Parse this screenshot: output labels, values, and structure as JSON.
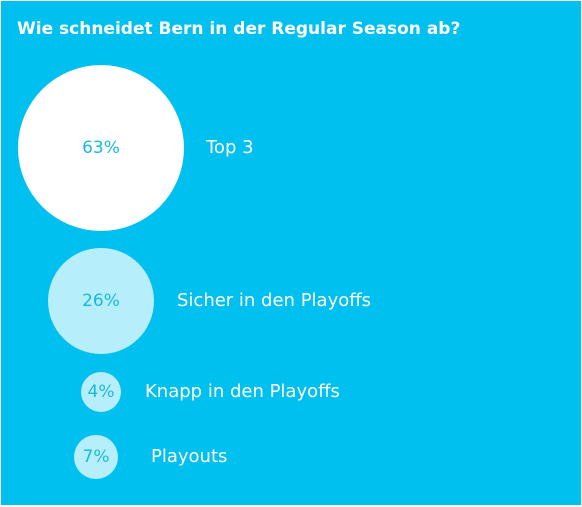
{
  "poll": {
    "title": "Wie schneidet Bern in der Regular Season ab?",
    "colors": {
      "background": "#00c0f0",
      "top_bubble": "#ffffff",
      "other_bubble": "#b7eefc",
      "percent_text": "#1ab8dc",
      "label_text": "#ffffff"
    },
    "options": [
      {
        "percent_label": "63%",
        "value": 63,
        "label": "Top 3"
      },
      {
        "percent_label": "26%",
        "value": 26,
        "label": "Sicher in den Playoffs"
      },
      {
        "percent_label": "4%",
        "value": 4,
        "label": "Knapp in den Playoffs"
      },
      {
        "percent_label": "7%",
        "value": 7,
        "label": "Playouts"
      }
    ]
  }
}
